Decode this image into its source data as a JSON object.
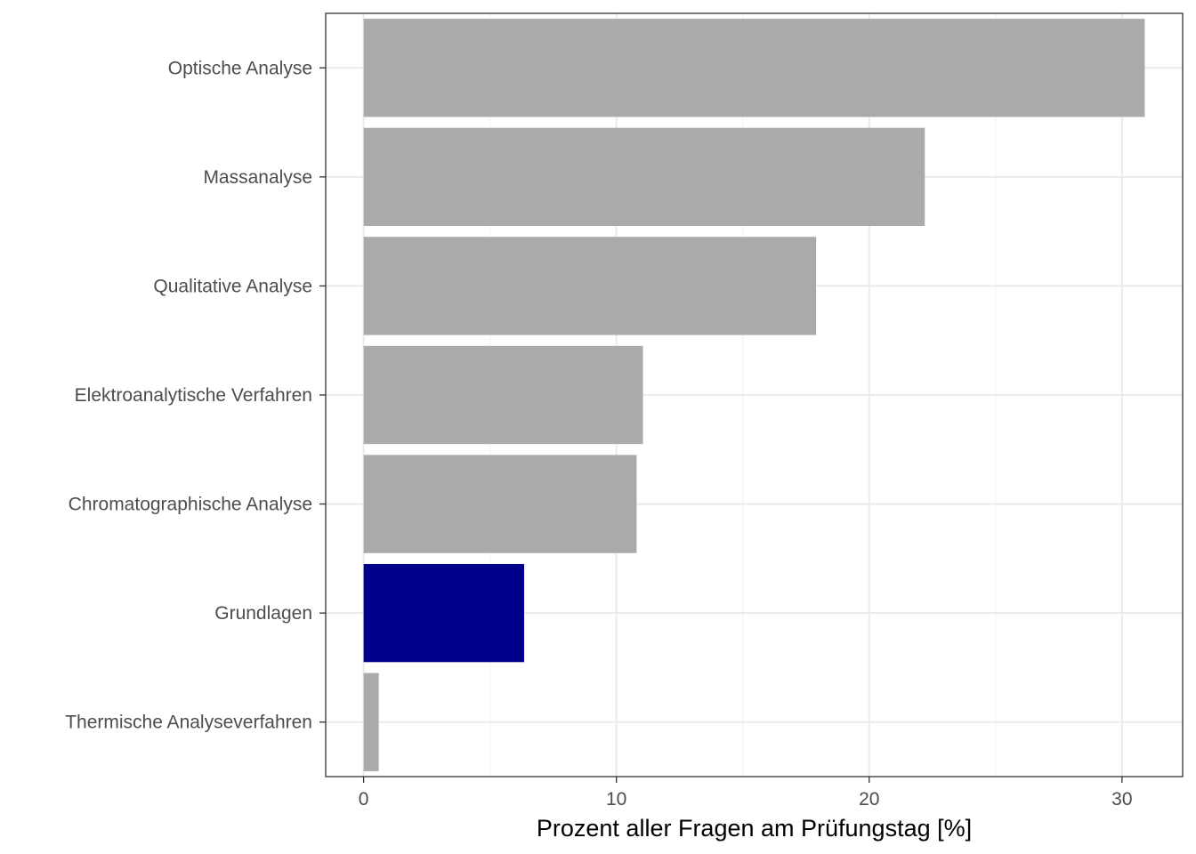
{
  "chart_data": {
    "type": "bar",
    "orientation": "horizontal",
    "categories": [
      "Optische Analyse",
      "Massanalyse",
      "Qualitative Analyse",
      "Elektroanalytische Verfahren",
      "Chromatographische Analyse",
      "Grundlagen",
      "Thermische Analyseverfahren"
    ],
    "values": [
      30.9,
      22.2,
      17.9,
      11.05,
      10.8,
      6.35,
      0.6
    ],
    "colors": [
      "#aaaaaa",
      "#aaaaaa",
      "#aaaaaa",
      "#aaaaaa",
      "#aaaaaa",
      "#00008b",
      "#aaaaaa"
    ],
    "xlabel": "Prozent aller Fragen am Prüfungstag [%]",
    "ylabel": "",
    "title": "",
    "xlim": [
      -1.5,
      32.4
    ],
    "xticks": [
      0,
      10,
      20,
      30
    ],
    "grid": true,
    "legend": "none"
  }
}
